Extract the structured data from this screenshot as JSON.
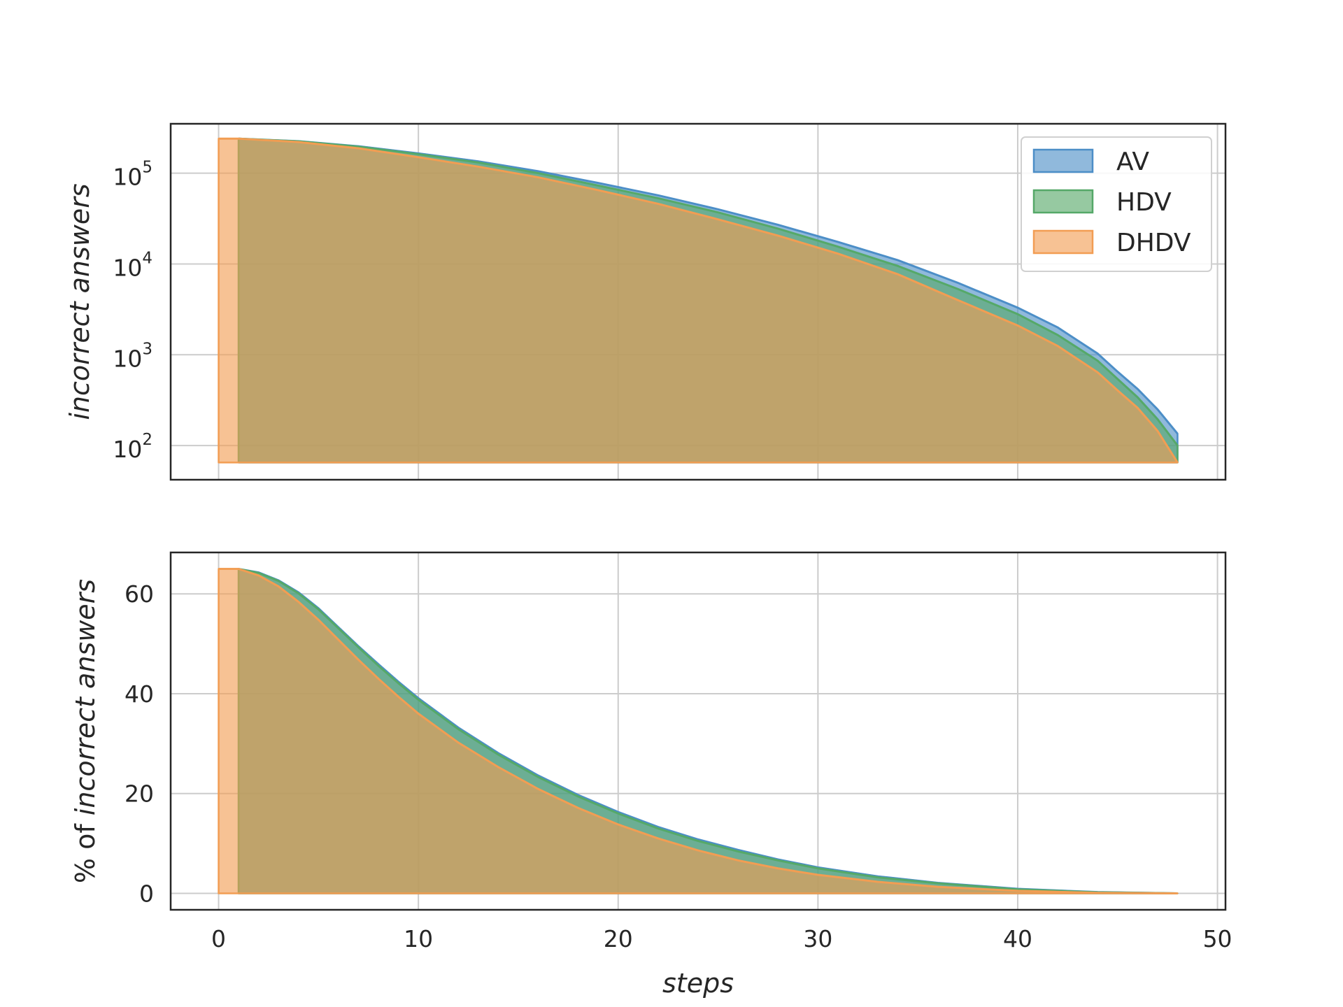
{
  "chart_data": [
    {
      "type": "area",
      "panel": "top",
      "ylabel": "incorrect answers",
      "xlabel": "",
      "yscale": "log",
      "xlim": [
        -2.4,
        50.4
      ],
      "ylim": [
        42,
        350000
      ],
      "baseline": 65,
      "yticks": [
        100,
        1000,
        10000,
        100000
      ],
      "ytick_labels": [
        {
          "base": "10",
          "exp": "2"
        },
        {
          "base": "10",
          "exp": "3"
        },
        {
          "base": "10",
          "exp": "4"
        },
        {
          "base": "10",
          "exp": "5"
        }
      ],
      "xticks": [
        0,
        10,
        20,
        30,
        40,
        50
      ],
      "grid": true,
      "legend": {
        "placement": "top-right",
        "entries": [
          "AV",
          "HDV",
          "DHDV"
        ]
      },
      "series": [
        {
          "name": "AV",
          "color": "#4c8ec7",
          "x": [
            1,
            4,
            7,
            10,
            13,
            16,
            19,
            22,
            25,
            28,
            31,
            34,
            37,
            40,
            42,
            44,
            45,
            46,
            47,
            48
          ],
          "values": [
            240000,
            225000,
            198000,
            165000,
            135000,
            105000,
            78000,
            57000,
            40000,
            27000,
            17500,
            11000,
            6200,
            3300,
            2000,
            1030,
            650,
            420,
            250,
            135
          ]
        },
        {
          "name": "HDV",
          "color": "#55a868",
          "x": [
            1,
            4,
            7,
            10,
            13,
            16,
            19,
            22,
            25,
            28,
            31,
            34,
            37,
            40,
            42,
            44,
            45,
            46,
            47,
            48
          ],
          "values": [
            240000,
            224000,
            196000,
            162000,
            131000,
            100000,
            73000,
            53000,
            37000,
            24500,
            15500,
            9500,
            5300,
            2800,
            1650,
            860,
            540,
            340,
            195,
            100
          ]
        },
        {
          "name": "DHDV",
          "color": "#f29d53",
          "x": [
            0,
            1,
            4,
            7,
            10,
            13,
            16,
            19,
            22,
            25,
            28,
            31,
            34,
            37,
            40,
            42,
            44,
            45,
            46,
            47,
            48
          ],
          "values": [
            240000,
            240000,
            220000,
            188000,
            150000,
            118000,
            90000,
            65000,
            46000,
            31000,
            20500,
            13000,
            7700,
            4000,
            2100,
            1250,
            640,
            405,
            260,
            145,
            65
          ]
        }
      ]
    },
    {
      "type": "area",
      "panel": "bottom",
      "ylabel_prefix": "% of ",
      "ylabel": "incorrect answers",
      "xlabel": "steps",
      "xlim": [
        -2.4,
        50.4
      ],
      "ylim": [
        -3.3,
        68.3
      ],
      "baseline": 0,
      "yticks": [
        0,
        20,
        40,
        60
      ],
      "xticks": [
        0,
        10,
        20,
        30,
        40,
        50
      ],
      "grid": true,
      "series": [
        {
          "name": "AV",
          "color": "#4c8ec7",
          "x": [
            1,
            2,
            3,
            4,
            5,
            6,
            7,
            8,
            9,
            10,
            12,
            14,
            16,
            18,
            20,
            22,
            24,
            26,
            28,
            30,
            33,
            36,
            40,
            44,
            48
          ],
          "values": [
            65,
            64.3,
            62.7,
            60.3,
            57.1,
            53.3,
            49.5,
            45.9,
            42.4,
            39.1,
            33.2,
            28.1,
            23.6,
            19.7,
            16.3,
            13.3,
            10.8,
            8.7,
            6.8,
            5.2,
            3.4,
            2.1,
            0.9,
            0.25,
            0
          ]
        },
        {
          "name": "HDV",
          "color": "#55a868",
          "x": [
            1,
            2,
            3,
            4,
            5,
            6,
            7,
            8,
            9,
            10,
            12,
            14,
            16,
            18,
            20,
            22,
            24,
            26,
            28,
            30,
            33,
            36,
            40,
            44,
            48
          ],
          "values": [
            65,
            64.2,
            62.6,
            60.1,
            56.9,
            53.1,
            49.3,
            45.6,
            42.1,
            38.8,
            32.9,
            27.8,
            23.3,
            19.4,
            16.0,
            13.0,
            10.5,
            8.4,
            6.6,
            5.0,
            3.2,
            2.0,
            0.8,
            0.2,
            0
          ]
        },
        {
          "name": "DHDV",
          "color": "#f29d53",
          "x": [
            0,
            1,
            2,
            3,
            4,
            5,
            6,
            7,
            8,
            9,
            10,
            12,
            14,
            16,
            18,
            20,
            22,
            24,
            26,
            28,
            30,
            33,
            36,
            40,
            44,
            48
          ],
          "values": [
            65,
            65,
            63.7,
            61.5,
            58.4,
            54.8,
            50.8,
            46.8,
            43.0,
            39.4,
            36.0,
            30.2,
            25.3,
            20.9,
            17.1,
            13.8,
            11.0,
            8.6,
            6.6,
            5.0,
            3.7,
            2.3,
            1.3,
            0.5,
            0.1,
            0
          ]
        }
      ]
    }
  ]
}
